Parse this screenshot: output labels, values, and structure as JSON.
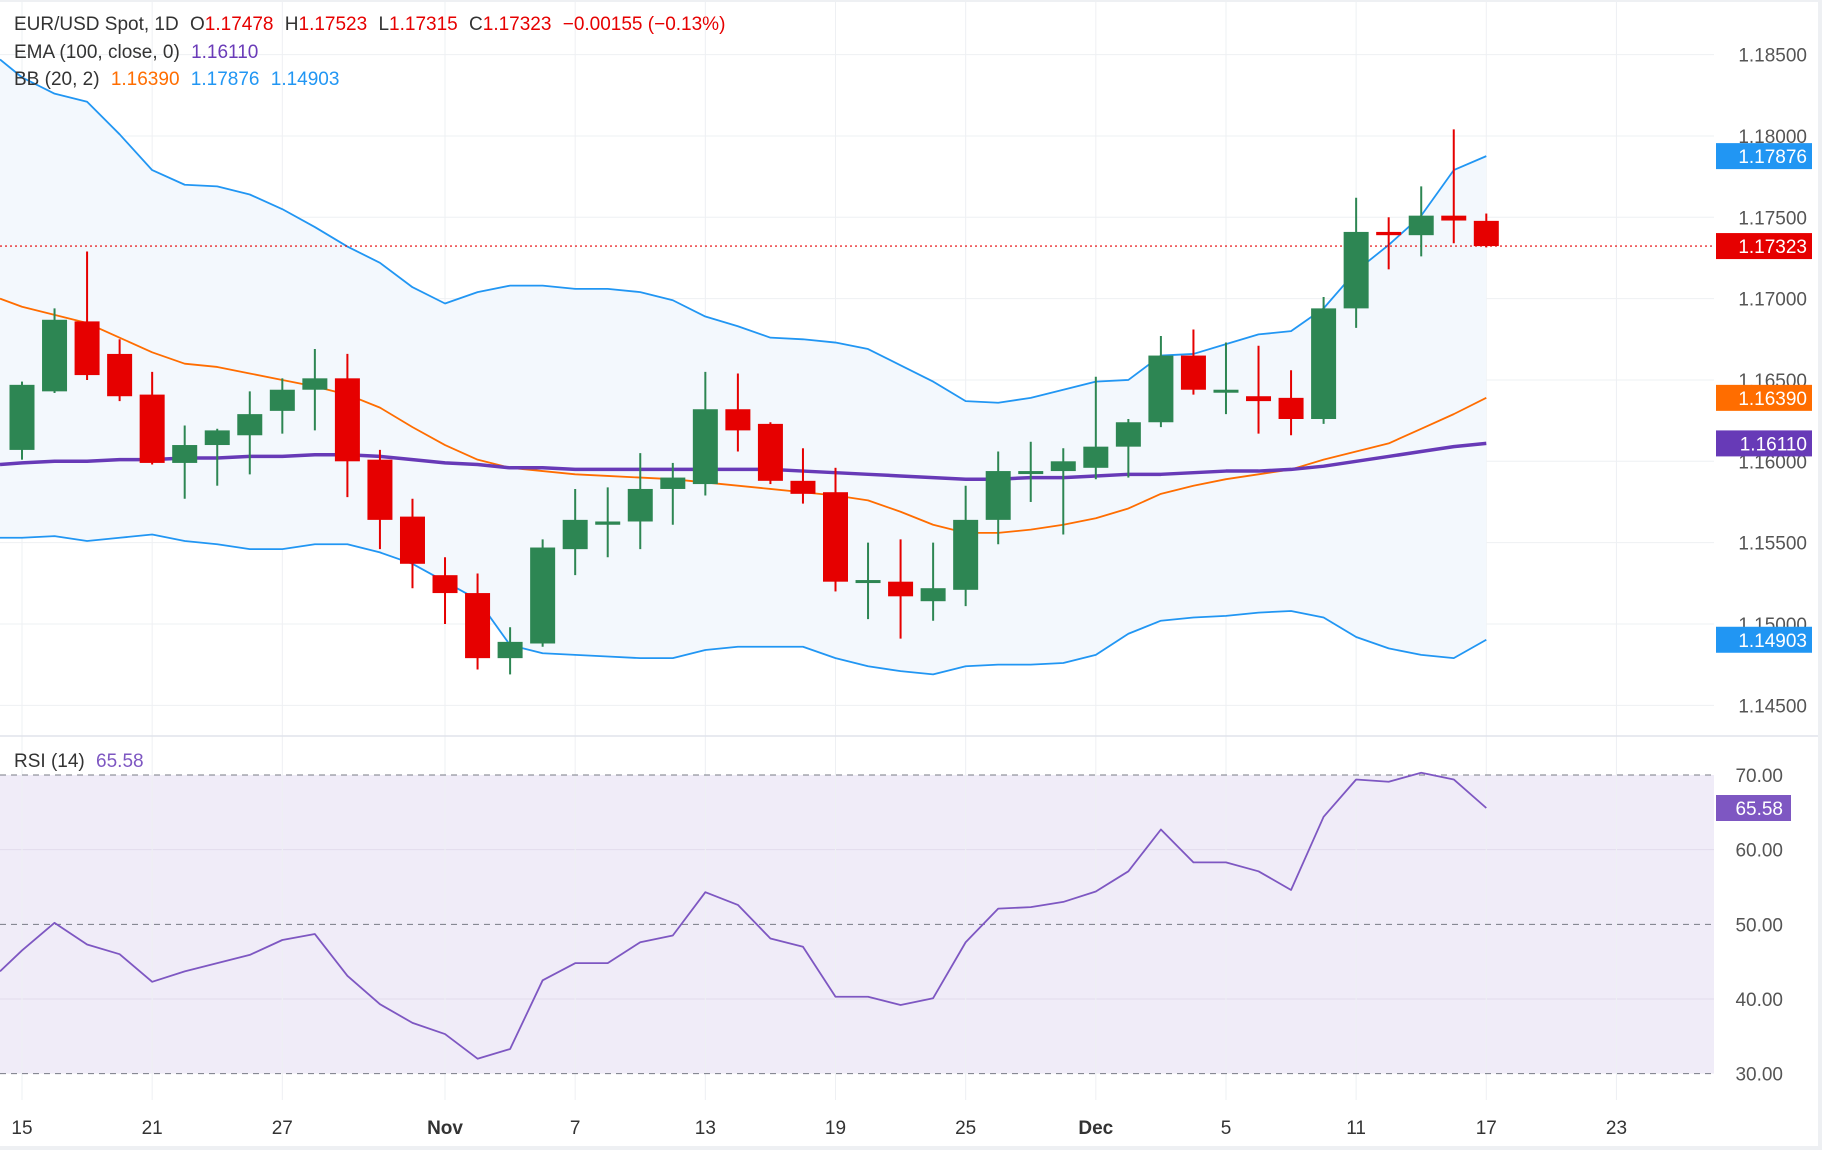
{
  "header": {
    "symbol": "EUR/USD Spot, 1D",
    "o_label": "O",
    "o_value": "1.17478",
    "h_label": "H",
    "h_value": "1.17523",
    "l_label": "L",
    "l_value": "1.17315",
    "c_label": "C",
    "c_value": "1.17323",
    "change": "−0.00155 (−0.13%)"
  },
  "ema_legend": {
    "label": "EMA (100, close, 0)",
    "value": "1.16110"
  },
  "bb_legend": {
    "label": "BB (20, 2)",
    "basis": "1.16390",
    "upper": "1.17876",
    "lower": "1.14903"
  },
  "rsi_legend": {
    "label": "RSI (14)",
    "value": "65.58"
  },
  "colors": {
    "up": "#2d8653",
    "down": "#e60000",
    "bb_band": "#2196f3",
    "bb_basis": "#ff6d00",
    "ema": "#673ab7",
    "rsi": "#7e57c2",
    "last_price": "#e60000"
  },
  "price_badges": [
    {
      "name": "bb-upper-badge",
      "value": "1.17876",
      "color": "#2196f3",
      "price": 1.17876
    },
    {
      "name": "last-price-badge",
      "value": "1.17323",
      "color": "#e60000",
      "price": 1.17323
    },
    {
      "name": "bb-basis-badge",
      "value": "1.16390",
      "color": "#ff6d00",
      "price": 1.1639
    },
    {
      "name": "ema-badge",
      "value": "1.16110",
      "color": "#673ab7",
      "price": 1.1611
    },
    {
      "name": "bb-lower-badge",
      "value": "1.14903",
      "color": "#2196f3",
      "price": 1.14903
    }
  ],
  "rsi_badge": {
    "value": "65.58",
    "color": "#7e57c2",
    "rsi": 65.58
  },
  "chart_data": {
    "type": "candlestick",
    "price_axis": {
      "ticks": [
        "1.18500",
        "1.18000",
        "1.17500",
        "1.17000",
        "1.16500",
        "1.16000",
        "1.15500",
        "1.15000",
        "1.14500"
      ],
      "range": [
        1.144,
        1.187
      ]
    },
    "rsi_axis": {
      "ticks": [
        "70.00",
        "60.00",
        "50.00",
        "40.00",
        "30.00"
      ],
      "levels_dashed": [
        70,
        50,
        30
      ],
      "band": [
        30,
        70
      ]
    },
    "x_labels": [
      {
        "label": "15",
        "index": 0
      },
      {
        "label": "21",
        "index": 4
      },
      {
        "label": "27",
        "index": 8
      },
      {
        "label": "Nov",
        "index": 13
      },
      {
        "label": "7",
        "index": 17
      },
      {
        "label": "13",
        "index": 21
      },
      {
        "label": "19",
        "index": 25
      },
      {
        "label": "25",
        "index": 29
      },
      {
        "label": "Dec",
        "index": 33
      },
      {
        "label": "5",
        "index": 37
      },
      {
        "label": "11",
        "index": 41
      },
      {
        "label": "17",
        "index": 45
      },
      {
        "label": "23",
        "index": 49
      }
    ],
    "ohlc": [
      [
        1.1607,
        1.1649,
        1.1601,
        1.1647
      ],
      [
        1.1643,
        1.1694,
        1.1642,
        1.1687
      ],
      [
        1.1686,
        1.1729,
        1.165,
        1.1653
      ],
      [
        1.1666,
        1.1675,
        1.1637,
        1.164
      ],
      [
        1.1641,
        1.1655,
        1.1598,
        1.1599
      ],
      [
        1.1599,
        1.1622,
        1.1577,
        1.161
      ],
      [
        1.161,
        1.162,
        1.1585,
        1.1619
      ],
      [
        1.1616,
        1.1643,
        1.1592,
        1.1629
      ],
      [
        1.1631,
        1.1651,
        1.1617,
        1.1644
      ],
      [
        1.1644,
        1.1669,
        1.1619,
        1.1651
      ],
      [
        1.1651,
        1.1666,
        1.1578,
        1.16
      ],
      [
        1.1601,
        1.1607,
        1.1546,
        1.1564
      ],
      [
        1.1566,
        1.1577,
        1.1522,
        1.1537
      ],
      [
        1.153,
        1.1541,
        1.15,
        1.1519
      ],
      [
        1.1519,
        1.1531,
        1.1472,
        1.1479
      ],
      [
        1.1479,
        1.1498,
        1.1469,
        1.1489
      ],
      [
        1.1488,
        1.1552,
        1.1486,
        1.1547
      ],
      [
        1.1546,
        1.1583,
        1.153,
        1.1564
      ],
      [
        1.1561,
        1.1584,
        1.1541,
        1.1563
      ],
      [
        1.1563,
        1.1605,
        1.1546,
        1.1583
      ],
      [
        1.1583,
        1.1599,
        1.1561,
        1.159
      ],
      [
        1.1586,
        1.1655,
        1.1579,
        1.1632
      ],
      [
        1.1632,
        1.1654,
        1.1606,
        1.1619
      ],
      [
        1.1623,
        1.1624,
        1.1586,
        1.1588
      ],
      [
        1.1588,
        1.1608,
        1.1574,
        1.158
      ],
      [
        1.1581,
        1.1596,
        1.152,
        1.1526
      ],
      [
        1.1526,
        1.155,
        1.1503,
        1.1527
      ],
      [
        1.1526,
        1.1552,
        1.1491,
        1.1517
      ],
      [
        1.1514,
        1.155,
        1.1502,
        1.1522
      ],
      [
        1.1521,
        1.1585,
        1.1511,
        1.1564
      ],
      [
        1.1564,
        1.1606,
        1.1549,
        1.1594
      ],
      [
        1.1593,
        1.1612,
        1.1575,
        1.1594
      ],
      [
        1.1594,
        1.1608,
        1.1555,
        1.16
      ],
      [
        1.1596,
        1.1652,
        1.1589,
        1.1609
      ],
      [
        1.1609,
        1.1626,
        1.159,
        1.1624
      ],
      [
        1.1624,
        1.1677,
        1.1621,
        1.1665
      ],
      [
        1.1665,
        1.1681,
        1.1641,
        1.1644
      ],
      [
        1.1643,
        1.1673,
        1.1629,
        1.1644
      ],
      [
        1.164,
        1.1671,
        1.1617,
        1.1637
      ],
      [
        1.1639,
        1.1656,
        1.1616,
        1.1626
      ],
      [
        1.1626,
        1.1701,
        1.1623,
        1.1694
      ],
      [
        1.1694,
        1.1762,
        1.1682,
        1.1741
      ],
      [
        1.1741,
        1.175,
        1.1718,
        1.1739
      ],
      [
        1.1739,
        1.1769,
        1.1726,
        1.1751
      ],
      [
        1.1751,
        1.1804,
        1.1734,
        1.1748
      ],
      [
        1.17478,
        1.17523,
        1.17315,
        1.17323
      ]
    ],
    "bb_upper": [
      1.1836,
      1.1826,
      1.1821,
      1.1801,
      1.1779,
      1.177,
      1.1769,
      1.1764,
      1.1755,
      1.1744,
      1.1732,
      1.1722,
      1.1707,
      1.1697,
      1.1704,
      1.1708,
      1.1708,
      1.1706,
      1.1706,
      1.1704,
      1.1699,
      1.1689,
      1.1683,
      1.1676,
      1.1675,
      1.1673,
      1.1669,
      1.1659,
      1.1649,
      1.1637,
      1.1636,
      1.1639,
      1.1644,
      1.1649,
      1.165,
      1.1665,
      1.1666,
      1.1672,
      1.1678,
      1.168,
      1.1694,
      1.1717,
      1.1733,
      1.1751,
      1.1779,
      1.17876
    ],
    "bb_basis": [
      1.1695,
      1.169,
      1.1685,
      1.1676,
      1.1667,
      1.166,
      1.1658,
      1.1654,
      1.165,
      1.1646,
      1.1641,
      1.1633,
      1.1621,
      1.161,
      1.1601,
      1.1596,
      1.1594,
      1.1592,
      1.1591,
      1.159,
      1.1589,
      1.1587,
      1.1585,
      1.1583,
      1.1581,
      1.1579,
      1.1576,
      1.1569,
      1.1561,
      1.1556,
      1.1556,
      1.1558,
      1.1561,
      1.1565,
      1.1571,
      1.158,
      1.1585,
      1.1589,
      1.1592,
      1.1595,
      1.1601,
      1.1606,
      1.1611,
      1.162,
      1.1629,
      1.1639
    ],
    "bb_lower": [
      1.1553,
      1.1554,
      1.1551,
      1.1553,
      1.1555,
      1.1551,
      1.1549,
      1.1546,
      1.1546,
      1.1549,
      1.1549,
      1.1544,
      1.1537,
      1.1526,
      1.1515,
      1.1487,
      1.1482,
      1.1481,
      1.148,
      1.1479,
      1.1479,
      1.1484,
      1.1486,
      1.1486,
      1.1486,
      1.1479,
      1.1474,
      1.1471,
      1.1469,
      1.1474,
      1.1475,
      1.1475,
      1.1476,
      1.1481,
      1.1494,
      1.1502,
      1.1504,
      1.1505,
      1.1507,
      1.1508,
      1.1504,
      1.1492,
      1.1485,
      1.1481,
      1.1479,
      1.14903
    ],
    "ema": [
      1.1599,
      1.16,
      1.16,
      1.1601,
      1.1601,
      1.1602,
      1.1602,
      1.1603,
      1.1603,
      1.1604,
      1.1604,
      1.1603,
      1.1601,
      1.1599,
      1.1598,
      1.1596,
      1.1596,
      1.1595,
      1.1595,
      1.1595,
      1.1595,
      1.1595,
      1.1595,
      1.1595,
      1.1594,
      1.1593,
      1.1592,
      1.1591,
      1.159,
      1.1589,
      1.1589,
      1.159,
      1.159,
      1.1591,
      1.1592,
      1.1592,
      1.1593,
      1.1594,
      1.1594,
      1.1595,
      1.1597,
      1.16,
      1.1603,
      1.1606,
      1.1609,
      1.1611
    ],
    "rsi": [
      46.5,
      50.2,
      47.3,
      46.0,
      42.3,
      43.7,
      44.8,
      45.9,
      47.9,
      48.7,
      43.1,
      39.3,
      36.8,
      35.3,
      32.0,
      33.3,
      42.5,
      44.8,
      44.8,
      47.6,
      48.5,
      54.3,
      52.6,
      48.1,
      47.0,
      40.3,
      40.3,
      39.2,
      40.1,
      47.6,
      52.1,
      52.3,
      53.0,
      54.4,
      57.1,
      62.7,
      58.3,
      58.3,
      57.1,
      54.6,
      64.4,
      69.4,
      69.1,
      70.3,
      69.4,
      65.58
    ]
  }
}
